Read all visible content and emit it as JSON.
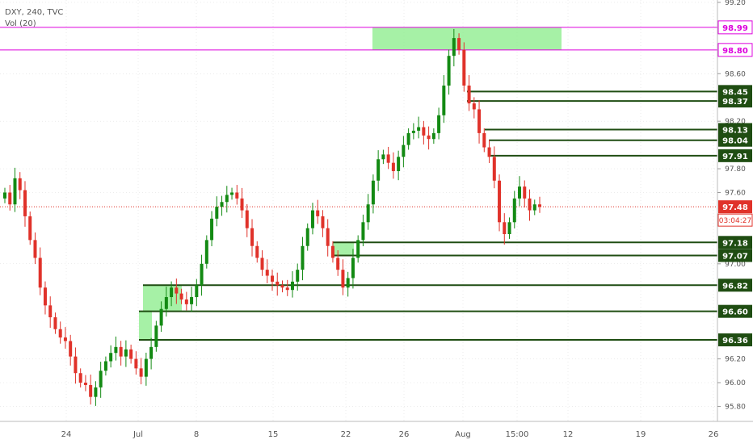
{
  "header": {
    "symbol_line": "DXY, 240, TVC",
    "indicator_line": "Vol (20)"
  },
  "colors": {
    "up": "#138a13",
    "down": "#e0322a",
    "level": "#1f4d12",
    "zone": "#90ee90",
    "magenta": "#dd00dd",
    "price_line": "#e0322a",
    "grid": "#d8d8d8"
  },
  "chart_data": {
    "type": "candlestick",
    "title": "DXY, 240, TVC",
    "ylim": [
      95.7,
      99.2
    ],
    "y_ticks": [
      "99.20",
      "98.60",
      "98.20",
      "97.80",
      "97.60",
      "97.00",
      "96.20",
      "96.00",
      "95.80"
    ],
    "y_tick_values": [
      99.2,
      98.6,
      98.2,
      97.8,
      97.6,
      97.0,
      96.2,
      96.0,
      95.8
    ],
    "x_ticks": [
      "24",
      "Jul",
      "8",
      "15",
      "22",
      "26",
      "Aug",
      "15:00",
      "12",
      "19",
      "26"
    ],
    "levels": [
      {
        "label": "98.99",
        "value": 98.99,
        "kind": "magenta"
      },
      {
        "label": "98.80",
        "value": 98.8,
        "kind": "magenta"
      },
      {
        "label": "98.45",
        "value": 98.45,
        "kind": "level"
      },
      {
        "label": "98.37",
        "value": 98.37,
        "kind": "level"
      },
      {
        "label": "98.13",
        "value": 98.13,
        "kind": "level"
      },
      {
        "label": "98.04",
        "value": 98.04,
        "kind": "level"
      },
      {
        "label": "97.91",
        "value": 97.91,
        "kind": "level"
      },
      {
        "label": "97.18",
        "value": 97.18,
        "kind": "level"
      },
      {
        "label": "97.07",
        "value": 97.07,
        "kind": "level"
      },
      {
        "label": "96.82",
        "value": 96.82,
        "kind": "level"
      },
      {
        "label": "96.60",
        "value": 96.6,
        "kind": "level"
      },
      {
        "label": "96.36",
        "value": 96.36,
        "kind": "level"
      }
    ],
    "current_price": {
      "label": "97.48",
      "value": 97.48
    },
    "countdown": "03:04:27",
    "zones": [
      {
        "price_low": 98.8,
        "price_high": 98.99
      },
      {
        "price_low": 97.07,
        "price_high": 97.18
      },
      {
        "price_low": 96.6,
        "price_high": 96.82
      },
      {
        "price_low": 96.36,
        "price_high": 96.6
      }
    ],
    "closes": [
      97.6,
      97.5,
      97.72,
      97.62,
      97.4,
      97.2,
      97.05,
      96.8,
      96.65,
      96.55,
      96.45,
      96.38,
      96.35,
      96.22,
      96.08,
      96.0,
      95.98,
      95.88,
      95.96,
      96.1,
      96.18,
      96.25,
      96.3,
      96.22,
      96.28,
      96.2,
      96.12,
      96.05,
      96.2,
      96.3,
      96.48,
      96.62,
      96.72,
      96.8,
      96.75,
      96.7,
      96.66,
      96.72,
      96.82,
      97.0,
      97.2,
      97.38,
      97.48,
      97.52,
      97.58,
      97.6,
      97.55,
      97.45,
      97.3,
      97.15,
      97.05,
      96.95,
      96.9,
      96.85,
      96.82,
      96.8,
      96.78,
      96.85,
      96.95,
      97.15,
      97.3,
      97.45,
      97.4,
      97.3,
      97.15,
      97.05,
      96.95,
      96.8,
      96.88,
      97.05,
      97.2,
      97.35,
      97.5,
      97.7,
      97.88,
      97.92,
      97.85,
      97.78,
      97.9,
      98.0,
      98.1,
      98.12,
      98.15,
      98.08,
      98.05,
      98.1,
      98.25,
      98.5,
      98.75,
      98.9,
      98.8,
      98.5,
      98.35,
      98.3,
      98.1,
      97.98,
      97.9,
      97.7,
      97.35,
      97.25,
      97.35,
      97.55,
      97.65,
      97.55,
      97.45,
      97.5,
      97.48
    ]
  }
}
